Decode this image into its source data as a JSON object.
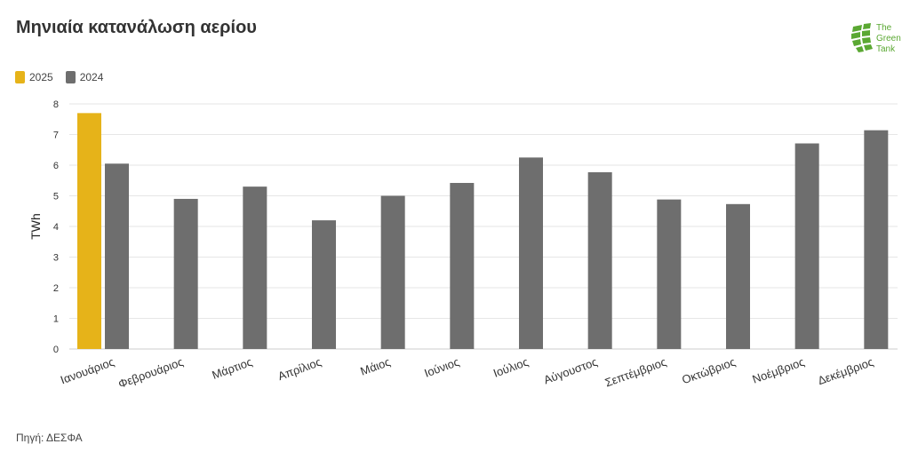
{
  "header": {
    "title": "Μηνιαία κατανάλωση αερίου",
    "logo": {
      "text_lines": [
        "The",
        "Green",
        "Tank"
      ],
      "icon": "green-tank-logo-icon",
      "color": "#5aa832"
    }
  },
  "footer": {
    "source": "Πηγή: ΔΕΣΦΑ"
  },
  "colors": {
    "series_2025": "#e6b319",
    "series_2024": "#6e6e6e",
    "grid": "#e6e6e6"
  },
  "chart_data": {
    "type": "bar",
    "title": "Μηνιαία κατανάλωση αερίου",
    "xlabel": "",
    "ylabel": "TWh",
    "ylim": [
      0,
      8
    ],
    "yticks": [
      0,
      1,
      2,
      3,
      4,
      5,
      6,
      7,
      8
    ],
    "grid": true,
    "legend_position": "top-left",
    "categories": [
      "Ιανουάριος",
      "Φεβρουάριος",
      "Μάρτιος",
      "Απρίλιος",
      "Μάιος",
      "Ιούνιος",
      "Ιούλιος",
      "Αύγουστος",
      "Σεπτέμβριος",
      "Οκτώβριος",
      "Νοέμβριος",
      "Δεκέμβριος"
    ],
    "series": [
      {
        "name": "2025",
        "color": "#e6b319",
        "values": [
          7.7,
          null,
          null,
          null,
          null,
          null,
          null,
          null,
          null,
          null,
          null,
          null
        ]
      },
      {
        "name": "2024",
        "color": "#6e6e6e",
        "values": [
          6.05,
          4.9,
          5.3,
          4.2,
          5.0,
          5.42,
          6.25,
          5.77,
          4.88,
          4.73,
          6.71,
          7.14
        ]
      }
    ]
  }
}
